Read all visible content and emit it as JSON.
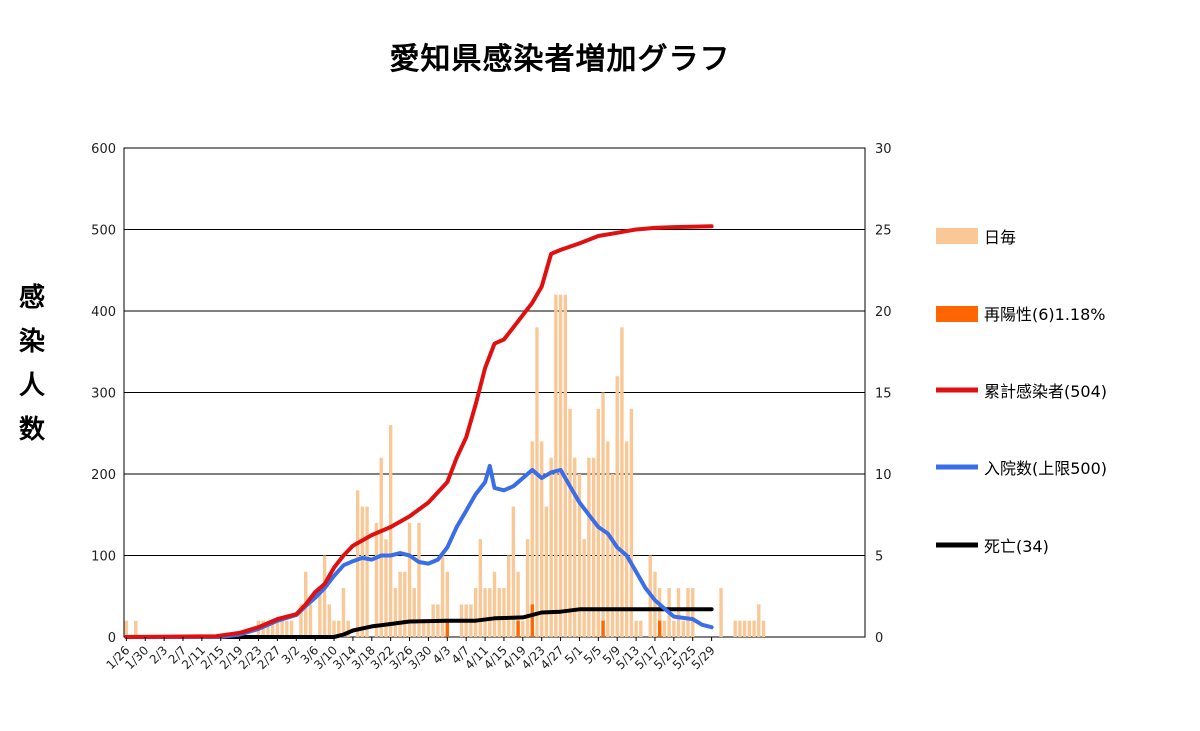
{
  "chart_data": {
    "type": "bar",
    "title": "愛知県感染者増加グラフ",
    "ylabel": "感染人数",
    "ylim": [
      0,
      600
    ],
    "y_ticks": [
      "0",
      "100",
      "200",
      "300",
      "400",
      "500",
      "600"
    ],
    "y2lim": [
      0,
      30
    ],
    "y2_ticks": [
      "0",
      "5",
      "10",
      "15",
      "20",
      "25",
      "30"
    ],
    "x_tick_labels": [
      "1/26",
      "1/30",
      "2/3",
      "2/7",
      "2/11",
      "2/15",
      "2/19",
      "2/23",
      "2/27",
      "3/2",
      "3/6",
      "3/10",
      "3/14",
      "3/18",
      "3/22",
      "3/26",
      "3/30",
      "4/3",
      "4/7",
      "4/11",
      "4/15",
      "4/19",
      "4/23",
      "4/27",
      "5/1",
      "5/5",
      "5/9",
      "5/13",
      "5/17",
      "5/21",
      "5/25",
      "5/29"
    ],
    "grid": true,
    "legend_position": "right",
    "colors": {
      "daily": "#fac896",
      "repositive": "#ff6600",
      "cumulative": "#e01010",
      "hospitalized": "#3a6ee8",
      "deaths": "#000000"
    },
    "series": [
      {
        "name": "日毎",
        "kind": "bar",
        "axis": "right",
        "values": [
          1,
          0,
          1,
          0,
          0,
          0,
          0,
          0,
          0,
          0,
          0,
          0,
          0,
          0,
          0,
          0,
          0,
          0,
          0,
          0,
          0,
          0,
          0,
          0,
          0,
          0,
          0,
          0,
          1,
          1,
          1,
          1,
          1,
          1,
          1,
          1,
          0,
          2,
          4,
          2,
          0,
          3,
          5,
          2,
          1,
          1,
          3,
          1,
          0,
          9,
          8,
          8,
          0,
          7,
          11,
          6,
          13,
          3,
          4,
          4,
          7,
          3,
          7,
          1,
          1,
          2,
          2,
          5,
          4,
          0,
          0,
          2,
          2,
          2,
          3,
          6,
          3,
          3,
          4,
          3,
          3,
          5,
          8,
          4,
          1,
          6,
          12,
          19,
          12,
          8,
          11,
          21,
          21,
          21,
          14,
          11,
          10,
          6,
          11,
          11,
          14,
          15,
          12,
          10,
          16,
          19,
          12,
          14,
          1,
          1,
          0,
          5,
          4,
          3,
          1,
          3,
          1,
          3,
          1,
          3,
          3,
          0,
          0,
          0,
          0,
          0,
          3,
          0,
          0,
          1,
          1,
          1,
          1,
          1,
          2,
          1,
          0,
          0,
          0,
          0,
          0,
          0,
          0,
          0,
          0,
          0,
          0,
          0,
          0,
          0,
          0,
          0,
          0,
          0,
          0,
          0,
          0
        ]
      },
      {
        "name": "再陽性(6)1.18%",
        "kind": "bar",
        "axis": "right",
        "values": [
          0,
          0,
          0,
          0,
          0,
          0,
          0,
          0,
          0,
          0,
          0,
          0,
          0,
          0,
          0,
          0,
          0,
          0,
          0,
          0,
          0,
          0,
          0,
          0,
          0,
          0,
          0,
          0,
          0,
          0,
          0,
          0,
          0,
          0,
          0,
          0,
          0,
          0,
          0,
          0,
          0,
          0,
          0,
          0,
          0,
          0,
          0,
          0,
          0,
          0,
          0,
          0,
          0,
          0,
          0,
          0,
          0,
          0,
          0,
          0,
          0,
          0,
          0,
          0,
          0,
          0,
          0,
          0,
          0,
          0,
          0,
          0,
          0,
          0,
          0,
          0,
          0,
          0,
          0,
          0,
          0,
          0,
          0,
          0,
          0,
          0,
          0,
          0,
          0,
          0,
          0,
          0,
          0,
          0,
          0,
          0,
          0,
          0,
          0,
          0,
          0,
          0,
          0,
          0,
          0,
          0,
          0,
          0,
          0,
          0,
          0,
          0,
          0,
          0,
          0,
          0,
          0,
          0,
          0,
          0,
          0,
          0,
          0,
          0,
          0,
          0,
          0,
          0,
          0,
          0,
          0,
          0,
          0,
          0,
          0,
          0,
          0,
          0,
          0,
          0,
          0,
          0,
          0,
          0,
          0,
          0,
          0,
          0,
          0,
          0,
          0,
          0,
          0,
          0,
          0,
          0,
          0
        ],
        "events": [
          {
            "x": "4/3",
            "value": 1
          },
          {
            "x": "4/18",
            "value": 1
          },
          {
            "x": "4/21",
            "value": 2
          },
          {
            "x": "5/6",
            "value": 1
          },
          {
            "x": "5/18",
            "value": 1
          }
        ]
      },
      {
        "name": "累計感染者(504)",
        "kind": "line",
        "axis": "left",
        "points": [
          [
            "1/26",
            0
          ],
          [
            "2/14",
            1
          ],
          [
            "2/19",
            5
          ],
          [
            "2/23",
            12
          ],
          [
            "2/27",
            22
          ],
          [
            "3/2",
            28
          ],
          [
            "3/4",
            40
          ],
          [
            "3/6",
            55
          ],
          [
            "3/8",
            65
          ],
          [
            "3/10",
            85
          ],
          [
            "3/12",
            100
          ],
          [
            "3/14",
            112
          ],
          [
            "3/18",
            125
          ],
          [
            "3/22",
            135
          ],
          [
            "3/26",
            148
          ],
          [
            "3/30",
            165
          ],
          [
            "4/3",
            190
          ],
          [
            "4/5",
            220
          ],
          [
            "4/7",
            245
          ],
          [
            "4/9",
            285
          ],
          [
            "4/11",
            330
          ],
          [
            "4/13",
            360
          ],
          [
            "4/15",
            365
          ],
          [
            "4/17",
            380
          ],
          [
            "4/19",
            395
          ],
          [
            "4/21",
            410
          ],
          [
            "4/23",
            430
          ],
          [
            "4/25",
            470
          ],
          [
            "4/27",
            475
          ],
          [
            "5/1",
            483
          ],
          [
            "5/5",
            492
          ],
          [
            "5/9",
            496
          ],
          [
            "5/13",
            500
          ],
          [
            "5/17",
            502
          ],
          [
            "5/21",
            503
          ],
          [
            "5/29",
            504
          ]
        ]
      },
      {
        "name": "入院数(上限500)",
        "kind": "line",
        "axis": "left",
        "points": [
          [
            "1/26",
            0
          ],
          [
            "2/15",
            0
          ],
          [
            "2/19",
            3
          ],
          [
            "2/23",
            10
          ],
          [
            "2/27",
            20
          ],
          [
            "3/2",
            27
          ],
          [
            "3/4",
            38
          ],
          [
            "3/6",
            48
          ],
          [
            "3/8",
            60
          ],
          [
            "3/10",
            75
          ],
          [
            "3/12",
            88
          ],
          [
            "3/14",
            93
          ],
          [
            "3/16",
            97
          ],
          [
            "3/18",
            95
          ],
          [
            "3/20",
            100
          ],
          [
            "3/22",
            100
          ],
          [
            "3/24",
            103
          ],
          [
            "3/26",
            100
          ],
          [
            "3/28",
            92
          ],
          [
            "3/30",
            90
          ],
          [
            "4/1",
            95
          ],
          [
            "4/3",
            110
          ],
          [
            "4/5",
            135
          ],
          [
            "4/7",
            155
          ],
          [
            "4/9",
            175
          ],
          [
            "4/11",
            190
          ],
          [
            "4/12",
            210
          ],
          [
            "4/13",
            183
          ],
          [
            "4/15",
            180
          ],
          [
            "4/17",
            185
          ],
          [
            "4/19",
            195
          ],
          [
            "4/21",
            205
          ],
          [
            "4/23",
            195
          ],
          [
            "4/25",
            202
          ],
          [
            "4/27",
            205
          ],
          [
            "4/29",
            185
          ],
          [
            "5/1",
            165
          ],
          [
            "5/3",
            150
          ],
          [
            "5/5",
            135
          ],
          [
            "5/7",
            127
          ],
          [
            "5/9",
            110
          ],
          [
            "5/11",
            100
          ],
          [
            "5/13",
            80
          ],
          [
            "5/15",
            60
          ],
          [
            "5/17",
            45
          ],
          [
            "5/19",
            35
          ],
          [
            "5/21",
            25
          ],
          [
            "5/25",
            22
          ],
          [
            "5/27",
            15
          ],
          [
            "5/29",
            12
          ]
        ]
      },
      {
        "name": "死亡(34)",
        "kind": "line",
        "axis": "left",
        "points": [
          [
            "1/26",
            0
          ],
          [
            "3/10",
            0
          ],
          [
            "3/12",
            3
          ],
          [
            "3/14",
            8
          ],
          [
            "3/18",
            13
          ],
          [
            "3/22",
            16
          ],
          [
            "3/26",
            19
          ],
          [
            "4/3",
            20
          ],
          [
            "4/9",
            20
          ],
          [
            "4/13",
            23
          ],
          [
            "4/19",
            24
          ],
          [
            "4/23",
            30
          ],
          [
            "4/27",
            31
          ],
          [
            "5/1",
            34
          ],
          [
            "5/29",
            34
          ]
        ]
      }
    ]
  }
}
